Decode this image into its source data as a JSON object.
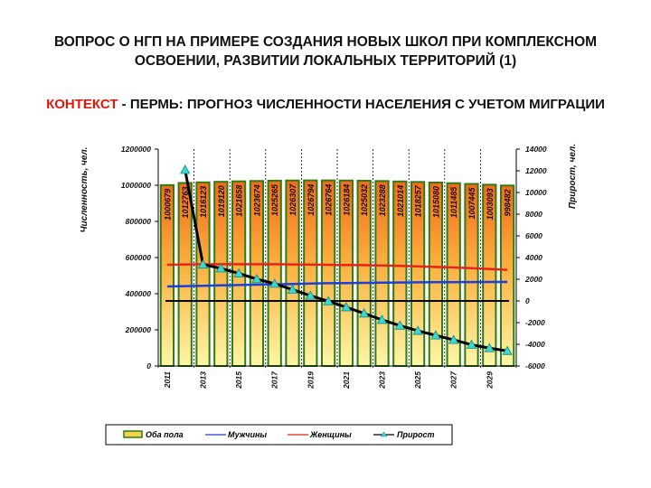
{
  "slide": {
    "title_line1": "ВОПРОС О НГП НА ПРИМЕРЕ  СОЗДАНИЯ НОВЫХ ШКОЛ ПРИ КОМПЛЕКСНОМ",
    "title_line2": "ОСВОЕНИИ, РАЗВИТИИ ЛОКАЛЬНЫХ ТЕРРИТОРИЙ (1)",
    "subtitle_highlight": "КОНТЕКСТ",
    "subtitle_rest": " - ПЕРМЬ: ПРОГНОЗ ЧИСЛЕННОСТИ НАСЕЛЕНИЯ С УЧЕТОМ МИГРАЦИИ",
    "highlight_color": "#e3170a"
  },
  "chart_data": {
    "type": "bar",
    "ylabel": "Численность, чел.",
    "y2label": "Прирост, чел.",
    "ylim": [
      0,
      1200000
    ],
    "y2lim": [
      -6000,
      14000
    ],
    "yticks": [
      "0",
      "200000",
      "400000",
      "600000",
      "800000",
      "1000000",
      "1200000"
    ],
    "y2ticks": [
      "-6000",
      "-4000",
      "-2000",
      "0",
      "2000",
      "4000",
      "6000",
      "8000",
      "10000",
      "12000",
      "14000"
    ],
    "categories": [
      2011,
      2012,
      2013,
      2014,
      2015,
      2016,
      2017,
      2018,
      2019,
      2020,
      2021,
      2022,
      2023,
      2024,
      2025,
      2026,
      2027,
      2028,
      2029,
      2030
    ],
    "xticklabels": [
      "2011",
      "2013",
      "2015",
      "2017",
      "2019",
      "2021",
      "2023",
      "2025",
      "2027",
      "2029"
    ],
    "grid": "vertical dashed",
    "legend_placement": "bottom",
    "series": [
      {
        "name": "Оба пола",
        "type": "bar",
        "axis": "left",
        "color": "#f47a20",
        "border": "#2e7d10",
        "values": [
          1000679,
          1012763,
          1016123,
          1019120,
          1021658,
          1023674,
          1025265,
          1026307,
          1026794,
          1026764,
          1026184,
          1025032,
          1023288,
          1021014,
          1018257,
          1015080,
          1011485,
          1007445,
          1003093,
          998482
        ],
        "labels": [
          "1000679",
          "1012763",
          "1016123",
          "1019120",
          "1021658",
          "1023674",
          "1025265",
          "1026307",
          "1026794",
          "1026764",
          "1026184",
          "1025032",
          "1023288",
          "1021014",
          "1018257",
          "1015080",
          "1011485",
          "1007445",
          "1003093",
          "998482"
        ]
      },
      {
        "name": "Мужчины",
        "type": "line",
        "axis": "left",
        "color": "#1f3fd6",
        "values": [
          440000,
          442000,
          444000,
          446000,
          448000,
          450000,
          452000,
          454000,
          456000,
          458000,
          459000,
          460000,
          461000,
          462000,
          463000,
          463500,
          464000,
          464500,
          465000,
          465000
        ]
      },
      {
        "name": "Женщины",
        "type": "line",
        "axis": "left",
        "color": "#e8231b",
        "values": [
          560000,
          562000,
          563000,
          563000,
          563000,
          563000,
          563000,
          562000,
          561000,
          560000,
          559000,
          558000,
          556000,
          554000,
          551000,
          548000,
          545000,
          541000,
          537000,
          532000
        ]
      },
      {
        "name": "Прирост",
        "type": "line",
        "axis": "right",
        "color": "#000000",
        "marker": "triangle",
        "marker_color": "#3fd6d0",
        "values": [
          null,
          12084,
          3360,
          2997,
          2538,
          2016,
          1591,
          1042,
          487,
          -30,
          -580,
          -1152,
          -1744,
          -2274,
          -2757,
          -3177,
          -3595,
          -4040,
          -4352,
          -4611
        ]
      }
    ]
  }
}
